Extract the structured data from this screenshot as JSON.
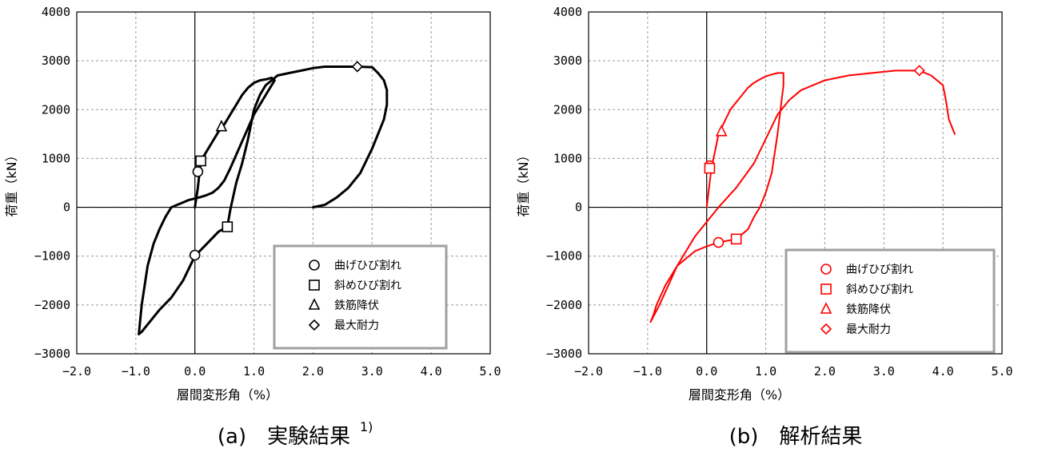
{
  "chart_data": [
    {
      "type": "line",
      "caption": "(a)　実験結果",
      "caption_sup": "1)",
      "xlabel": "層間変形角（%）",
      "ylabel": "荷重（kN）",
      "xlim": [
        -2.0,
        5.0
      ],
      "ylim": [
        -3000,
        4000
      ],
      "xticks": [
        "-2.0",
        "-1.0",
        "0.0",
        "1.0",
        "2.0",
        "3.0",
        "4.0",
        "5.0"
      ],
      "yticks": [
        "-3000",
        "-2000",
        "-1000",
        "0",
        "1000",
        "2000",
        "3000",
        "4000"
      ],
      "grid": true,
      "legend_position": "lower-right",
      "color": "#000000",
      "series": [
        {
          "x": [
            0.0,
            0.05,
            0.1,
            0.2,
            0.3,
            0.4,
            0.5,
            0.6,
            0.7,
            0.8,
            0.9,
            1.0,
            1.1,
            1.2,
            1.3,
            1.35,
            1.3,
            1.2,
            1.0,
            0.8,
            0.6,
            0.5,
            0.4,
            0.3,
            0.2,
            0.1,
            0.0,
            -0.1,
            -0.2,
            -0.3,
            -0.4,
            -0.5,
            -0.6,
            -0.7,
            -0.8,
            -0.85,
            -0.9,
            -0.95,
            -0.9,
            -0.8,
            -0.6,
            -0.4,
            -0.2,
            0.0,
            0.2,
            0.4,
            0.55,
            0.6,
            0.7,
            0.8,
            0.9,
            1.0,
            1.1,
            1.2,
            1.3,
            1.4,
            1.6,
            1.8,
            2.0,
            2.2,
            2.4,
            2.6,
            2.75,
            3.0,
            3.1,
            3.2,
            3.25,
            3.25,
            3.2,
            3.1,
            3.0,
            2.9,
            2.8,
            2.6,
            2.4,
            2.2,
            2.0
          ],
          "y": [
            0,
            400,
            950,
            1150,
            1350,
            1550,
            1700,
            1900,
            2100,
            2300,
            2450,
            2550,
            2600,
            2620,
            2650,
            2600,
            2500,
            2300,
            1900,
            1350,
            800,
            550,
            400,
            300,
            250,
            210,
            180,
            150,
            100,
            50,
            0,
            -200,
            -450,
            -750,
            -1200,
            -1600,
            -2000,
            -2600,
            -2550,
            -2400,
            -2100,
            -1850,
            -1500,
            -1000,
            -750,
            -500,
            -400,
            -50,
            500,
            900,
            1400,
            2000,
            2300,
            2500,
            2600,
            2700,
            2750,
            2800,
            2850,
            2880,
            2880,
            2880,
            2880,
            2870,
            2750,
            2600,
            2400,
            2100,
            1800,
            1500,
            1200,
            950,
            700,
            400,
            200,
            50,
            0
          ]
        }
      ],
      "markers": [
        {
          "label": "曲げひび割れ",
          "shape": "circle",
          "points": [
            [
              0.05,
              730
            ],
            [
              0.0,
              -980
            ]
          ]
        },
        {
          "label": "斜めひび割れ",
          "shape": "square",
          "points": [
            [
              0.1,
              950
            ],
            [
              0.55,
              -400
            ]
          ]
        },
        {
          "label": "鉄筋降伏",
          "shape": "triangle",
          "points": [
            [
              0.45,
              1650
            ]
          ]
        },
        {
          "label": "最大耐力",
          "shape": "diamond",
          "points": [
            [
              2.75,
              2880
            ]
          ]
        }
      ]
    },
    {
      "type": "line",
      "caption": "(b)　解析結果",
      "caption_sup": "",
      "xlabel": "層間変形角（%）",
      "ylabel": "荷重（kN）",
      "xlim": [
        -2.0,
        5.0
      ],
      "ylim": [
        -3000,
        4000
      ],
      "xticks": [
        "-2.0",
        "-1.0",
        "0.0",
        "1.0",
        "2.0",
        "3.0",
        "4.0",
        "5.0"
      ],
      "yticks": [
        "-3000",
        "-2000",
        "-1000",
        "0",
        "1000",
        "2000",
        "3000",
        "4000"
      ],
      "grid": true,
      "legend_position": "lower-right",
      "color": "#ff0000",
      "series": [
        {
          "x": [
            0.0,
            0.05,
            0.08,
            0.15,
            0.2,
            0.3,
            0.4,
            0.5,
            0.6,
            0.7,
            0.8,
            0.9,
            1.0,
            1.1,
            1.2,
            1.3,
            1.3,
            1.2,
            1.1,
            1.0,
            0.9,
            0.8,
            0.7,
            0.5,
            0.2,
            0.0,
            -0.2,
            -0.5,
            -0.7,
            -0.85,
            -0.9,
            -0.95,
            -0.8,
            -0.5,
            -0.2,
            0.0,
            0.2,
            0.5,
            0.8,
            1.0,
            1.2,
            1.4,
            1.6,
            1.8,
            2.0,
            2.4,
            2.8,
            3.2,
            3.5,
            3.6,
            3.8,
            4.0,
            4.05,
            4.1,
            4.2
          ],
          "y": [
            0,
            500,
            800,
            1200,
            1500,
            1750,
            2000,
            2150,
            2300,
            2450,
            2550,
            2620,
            2680,
            2720,
            2750,
            2750,
            2500,
            1500,
            700,
            300,
            0,
            -200,
            -450,
            -650,
            -720,
            -800,
            -900,
            -1200,
            -1600,
            -2000,
            -2200,
            -2350,
            -2000,
            -1200,
            -600,
            -300,
            0,
            400,
            900,
            1400,
            1900,
            2200,
            2400,
            2500,
            2600,
            2700,
            2750,
            2800,
            2800,
            2800,
            2700,
            2500,
            2200,
            1800,
            1500
          ]
        }
      ],
      "markers": [
        {
          "label": "曲げひび割れ",
          "shape": "circle",
          "points": [
            [
              0.05,
              850
            ],
            [
              0.2,
              -720
            ]
          ]
        },
        {
          "label": "斜めひび割れ",
          "shape": "square",
          "points": [
            [
              0.05,
              800
            ],
            [
              0.5,
              -650
            ]
          ]
        },
        {
          "label": "鉄筋降伏",
          "shape": "triangle",
          "points": [
            [
              0.25,
              1550
            ]
          ]
        },
        {
          "label": "最大耐力",
          "shape": "diamond",
          "points": [
            [
              3.6,
              2800
            ]
          ]
        }
      ]
    }
  ]
}
